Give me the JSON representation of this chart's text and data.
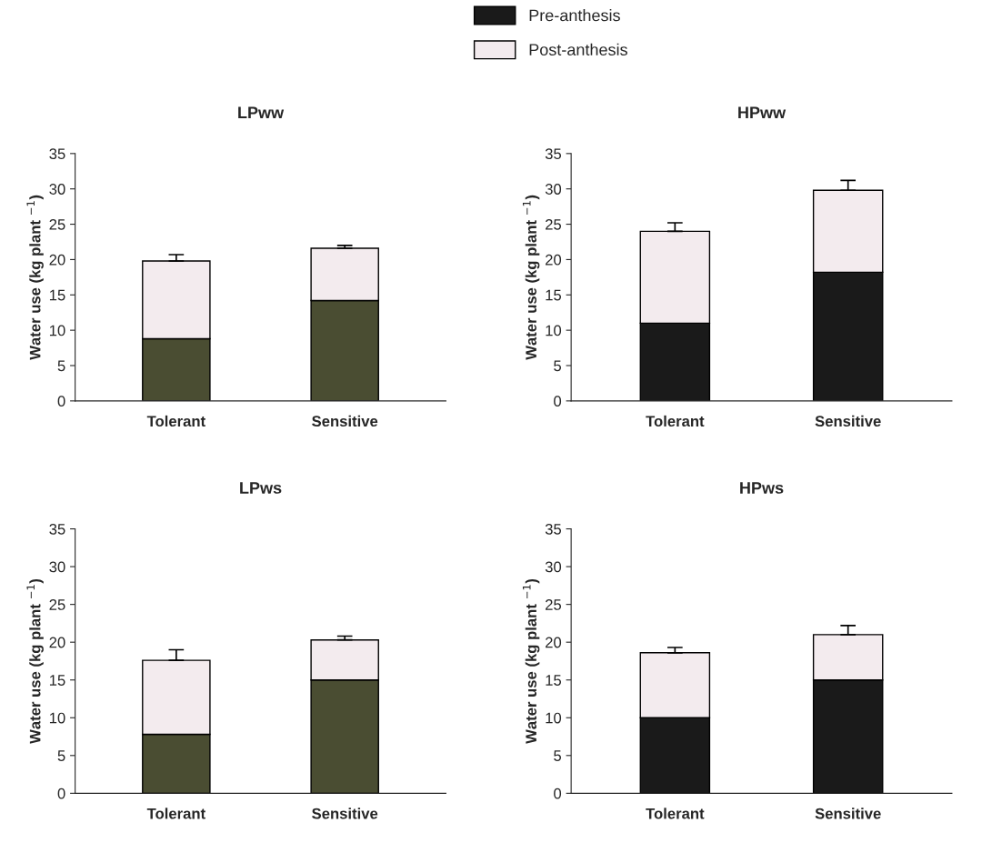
{
  "chart_data": [
    {
      "type": "bar",
      "title": "LPww",
      "ylabel": "Water use (kg plant $^{−1}$)",
      "categories": [
        "Tolerant",
        "Sensitive"
      ],
      "stacked": true,
      "ylim": [
        0,
        35
      ],
      "yticks": [
        0,
        5,
        10,
        15,
        20,
        25,
        30,
        35
      ],
      "series": [
        {
          "color": "#4a4d32",
          "values": [
            8.8,
            14.2
          ]
        },
        {
          "color": "#f3ebee",
          "values": [
            11.0,
            7.4
          ],
          "errors": [
            [
              19.8,
              20.7
            ],
            [
              21.6,
              22.0
            ]
          ]
        }
      ]
    },
    {
      "type": "bar",
      "title": "HPww",
      "ylabel": "Water use (kg plant $^{−1}$)",
      "categories": [
        "Tolerant",
        "Sensitive"
      ],
      "stacked": true,
      "ylim": [
        0,
        35
      ],
      "yticks": [
        0,
        5,
        10,
        15,
        20,
        25,
        30,
        35
      ],
      "legend": "top",
      "series": [
        {
          "name": "Pre-anthesis",
          "color": "#1a1a1a",
          "values": [
            11.0,
            18.2
          ]
        },
        {
          "name": "Post-anthesis",
          "color": "#f3ebee",
          "values": [
            13.0,
            11.6
          ],
          "errors": [
            [
              24.0,
              25.2
            ],
            [
              29.8,
              31.2
            ]
          ]
        }
      ]
    },
    {
      "type": "bar",
      "title": "LPws",
      "ylabel": "Water use (kg plant $^{−1}$)",
      "categories": [
        "Tolerant",
        "Sensitive"
      ],
      "stacked": true,
      "ylim": [
        0,
        35
      ],
      "yticks": [
        0,
        5,
        10,
        15,
        20,
        25,
        30,
        35
      ],
      "series": [
        {
          "color": "#4a4d32",
          "values": [
            7.8,
            15.0
          ]
        },
        {
          "color": "#f3ebee",
          "values": [
            9.8,
            5.3
          ],
          "errors": [
            [
              17.6,
              19.0
            ],
            [
              20.3,
              20.8
            ]
          ]
        }
      ]
    },
    {
      "type": "bar",
      "title": "HPws",
      "ylabel": "Water use (kg plant $^{−1}$)",
      "categories": [
        "Tolerant",
        "Sensitive"
      ],
      "stacked": true,
      "ylim": [
        0,
        35
      ],
      "yticks": [
        0,
        5,
        10,
        15,
        20,
        25,
        30,
        35
      ],
      "series": [
        {
          "color": "#1a1a1a",
          "values": [
            10.0,
            15.0
          ]
        },
        {
          "color": "#f3ebee",
          "values": [
            8.6,
            6.0
          ],
          "errors": [
            [
              18.6,
              19.3
            ],
            [
              21.0,
              22.2
            ]
          ]
        }
      ]
    }
  ]
}
